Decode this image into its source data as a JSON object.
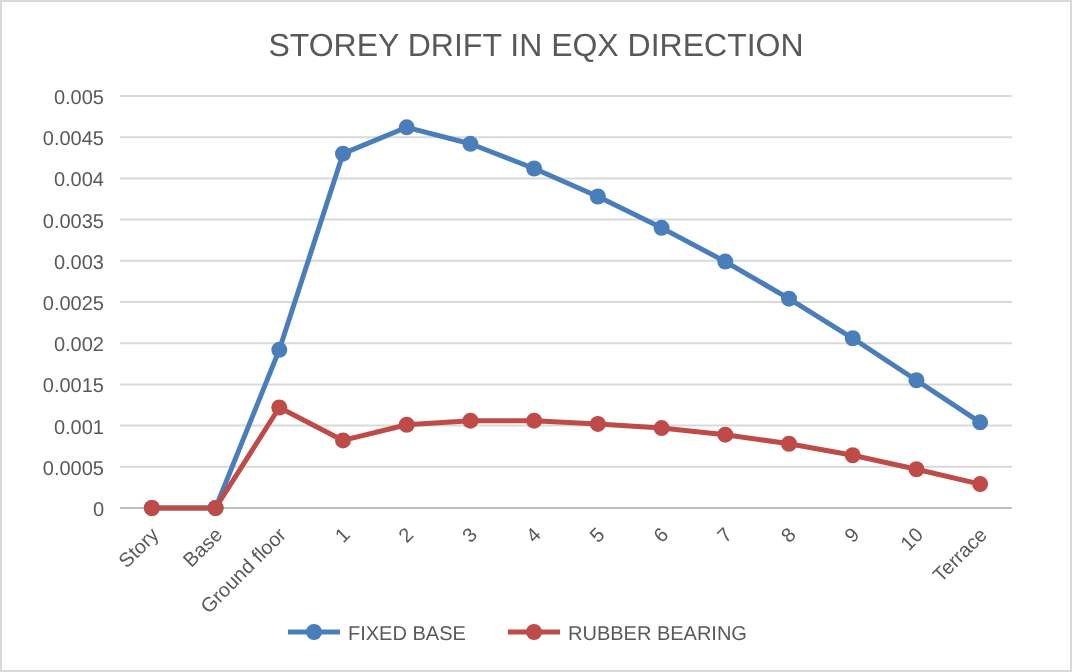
{
  "chart_data": {
    "type": "line",
    "title": "STOREY DRIFT IN EQX DIRECTION",
    "categories": [
      "Story",
      "Base",
      "Ground floor",
      "1",
      "2",
      "3",
      "4",
      "5",
      "6",
      "7",
      "8",
      "9",
      "10",
      "Terrace"
    ],
    "series": [
      {
        "name": "FIXED BASE",
        "color": "#4a7ebb",
        "values": [
          0,
          0,
          0.00192,
          0.0043,
          0.00462,
          0.00442,
          0.00412,
          0.00378,
          0.0034,
          0.00299,
          0.00254,
          0.00206,
          0.00155,
          0.00104
        ]
      },
      {
        "name": "RUBBER BEARING",
        "color": "#be4b48",
        "values": [
          0,
          0,
          0.00122,
          0.00082,
          0.00101,
          0.00106,
          0.00106,
          0.00102,
          0.00097,
          0.00089,
          0.00078,
          0.00064,
          0.00047,
          0.00029
        ]
      }
    ],
    "ylim": [
      0,
      0.005
    ],
    "yticks": [
      0,
      0.0005,
      0.001,
      0.0015,
      0.002,
      0.0025,
      0.003,
      0.0035,
      0.004,
      0.0045,
      0.005
    ],
    "grid": "y",
    "legend": "bottom",
    "marker": "circle",
    "line_style": "solid"
  }
}
